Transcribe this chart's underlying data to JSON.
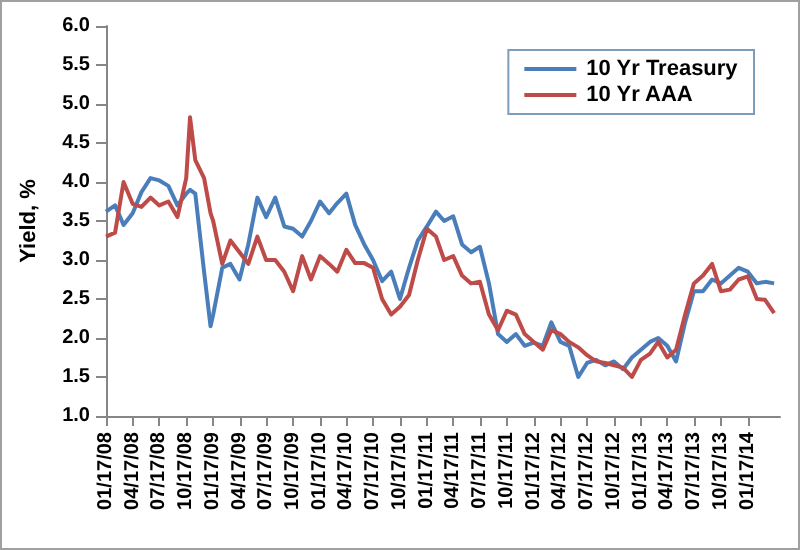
{
  "chart_data": {
    "type": "line",
    "ylabel": "Yield, %",
    "ylim": [
      1.0,
      6.0
    ],
    "yticks": [
      {
        "value": 1.0,
        "label": "1.0"
      },
      {
        "value": 1.5,
        "label": "1.5"
      },
      {
        "value": 2.0,
        "label": "2.0"
      },
      {
        "value": 2.5,
        "label": "2.5"
      },
      {
        "value": 3.0,
        "label": "3.0"
      },
      {
        "value": 3.5,
        "label": "3.5"
      },
      {
        "value": 4.0,
        "label": "4.0"
      },
      {
        "value": 4.5,
        "label": "4.5"
      },
      {
        "value": 5.0,
        "label": "5.0"
      },
      {
        "value": 5.5,
        "label": "5.5"
      },
      {
        "value": 6.0,
        "label": "6.0"
      }
    ],
    "xlim": [
      "2008-01-17",
      "2014-05-07"
    ],
    "xticks": [
      {
        "value": "2008-01-17",
        "label": "01/17/08"
      },
      {
        "value": "2008-04-17",
        "label": "04/17/08"
      },
      {
        "value": "2008-07-17",
        "label": "07/17/08"
      },
      {
        "value": "2008-10-17",
        "label": "10/17/08"
      },
      {
        "value": "2009-01-17",
        "label": "01/17/09"
      },
      {
        "value": "2009-04-17",
        "label": "04/17/09"
      },
      {
        "value": "2009-07-17",
        "label": "07/17/09"
      },
      {
        "value": "2009-10-17",
        "label": "10/17/09"
      },
      {
        "value": "2010-01-17",
        "label": "01/17/10"
      },
      {
        "value": "2010-04-17",
        "label": "04/17/10"
      },
      {
        "value": "2010-07-17",
        "label": "07/17/10"
      },
      {
        "value": "2010-10-17",
        "label": "10/17/10"
      },
      {
        "value": "2011-01-17",
        "label": "01/17/11"
      },
      {
        "value": "2011-04-17",
        "label": "04/17/11"
      },
      {
        "value": "2011-07-17",
        "label": "07/17/11"
      },
      {
        "value": "2011-10-17",
        "label": "10/17/11"
      },
      {
        "value": "2012-01-17",
        "label": "01/17/12"
      },
      {
        "value": "2012-04-17",
        "label": "04/17/12"
      },
      {
        "value": "2012-07-17",
        "label": "07/17/12"
      },
      {
        "value": "2012-10-17",
        "label": "10/17/12"
      },
      {
        "value": "2013-01-17",
        "label": "01/17/13"
      },
      {
        "value": "2013-04-17",
        "label": "04/17/13"
      },
      {
        "value": "2013-07-17",
        "label": "07/17/13"
      },
      {
        "value": "2013-10-17",
        "label": "10/17/13"
      },
      {
        "value": "2014-01-17",
        "label": "01/17/14"
      }
    ],
    "x": [
      "2008-01-17",
      "2008-02-17",
      "2008-03-17",
      "2008-04-17",
      "2008-05-17",
      "2008-06-17",
      "2008-07-17",
      "2008-08-17",
      "2008-09-17",
      "2008-10-17",
      "2008-10-30",
      "2008-11-17",
      "2008-12-17",
      "2009-01-08",
      "2009-01-17",
      "2009-02-17",
      "2009-03-17",
      "2009-04-17",
      "2009-05-17",
      "2009-06-17",
      "2009-07-17",
      "2009-08-17",
      "2009-09-17",
      "2009-10-17",
      "2009-11-17",
      "2009-12-17",
      "2010-01-17",
      "2010-02-17",
      "2010-03-17",
      "2010-04-17",
      "2010-05-17",
      "2010-06-17",
      "2010-07-17",
      "2010-08-17",
      "2010-09-17",
      "2010-10-17",
      "2010-11-17",
      "2010-12-17",
      "2011-01-17",
      "2011-02-17",
      "2011-03-17",
      "2011-04-17",
      "2011-05-17",
      "2011-06-17",
      "2011-07-17",
      "2011-08-17",
      "2011-09-17",
      "2011-10-17",
      "2011-11-17",
      "2011-12-17",
      "2012-01-17",
      "2012-02-17",
      "2012-03-17",
      "2012-04-17",
      "2012-05-17",
      "2012-06-17",
      "2012-07-17",
      "2012-08-17",
      "2012-09-17",
      "2012-10-17",
      "2012-11-17",
      "2012-12-17",
      "2013-01-17",
      "2013-02-17",
      "2013-03-17",
      "2013-04-17",
      "2013-05-17",
      "2013-06-17",
      "2013-07-17",
      "2013-08-17",
      "2013-09-17",
      "2013-10-17",
      "2013-11-17",
      "2013-12-17",
      "2014-01-17",
      "2014-02-17",
      "2014-03-17",
      "2014-04-17"
    ],
    "series": [
      {
        "name": "10 Yr Treasury",
        "color": "#4a7ebb",
        "values": [
          3.62,
          3.7,
          3.45,
          3.6,
          3.87,
          4.05,
          4.02,
          3.95,
          3.7,
          3.85,
          3.9,
          3.85,
          2.85,
          2.15,
          2.3,
          2.9,
          2.95,
          2.75,
          3.2,
          3.8,
          3.55,
          3.8,
          3.43,
          3.4,
          3.3,
          3.5,
          3.75,
          3.6,
          3.73,
          3.85,
          3.45,
          3.2,
          3.0,
          2.73,
          2.85,
          2.5,
          2.9,
          3.25,
          3.43,
          3.62,
          3.5,
          3.56,
          3.2,
          3.1,
          3.17,
          2.7,
          2.05,
          1.95,
          2.05,
          1.9,
          1.94,
          1.9,
          2.2,
          1.95,
          1.9,
          1.5,
          1.68,
          1.72,
          1.65,
          1.7,
          1.6,
          1.75,
          1.85,
          1.95,
          2.0,
          1.9,
          1.7,
          2.2,
          2.6,
          2.6,
          2.75,
          2.7,
          2.8,
          2.9,
          2.85,
          2.7,
          2.72,
          2.7
        ]
      },
      {
        "name": "10 Yr AAA",
        "color": "#be4b48",
        "values": [
          3.3,
          3.35,
          4.0,
          3.72,
          3.68,
          3.8,
          3.7,
          3.75,
          3.55,
          4.05,
          4.83,
          4.28,
          4.05,
          3.6,
          3.5,
          2.95,
          3.25,
          3.1,
          2.95,
          3.3,
          3.0,
          3.0,
          2.85,
          2.6,
          3.05,
          2.75,
          3.05,
          2.95,
          2.85,
          3.13,
          2.96,
          2.96,
          2.9,
          2.5,
          2.3,
          2.4,
          2.55,
          3.0,
          3.4,
          3.3,
          3.0,
          3.05,
          2.8,
          2.7,
          2.72,
          2.3,
          2.1,
          2.35,
          2.3,
          2.05,
          1.95,
          1.85,
          2.1,
          2.05,
          1.95,
          1.88,
          1.78,
          1.7,
          1.68,
          1.65,
          1.62,
          1.5,
          1.72,
          1.8,
          1.95,
          1.75,
          1.85,
          2.3,
          2.7,
          2.8,
          2.95,
          2.6,
          2.62,
          2.75,
          2.79,
          2.5,
          2.49,
          2.32
        ]
      }
    ],
    "legend": "top right",
    "grid": false,
    "marker": "none",
    "line_style": "solid"
  }
}
